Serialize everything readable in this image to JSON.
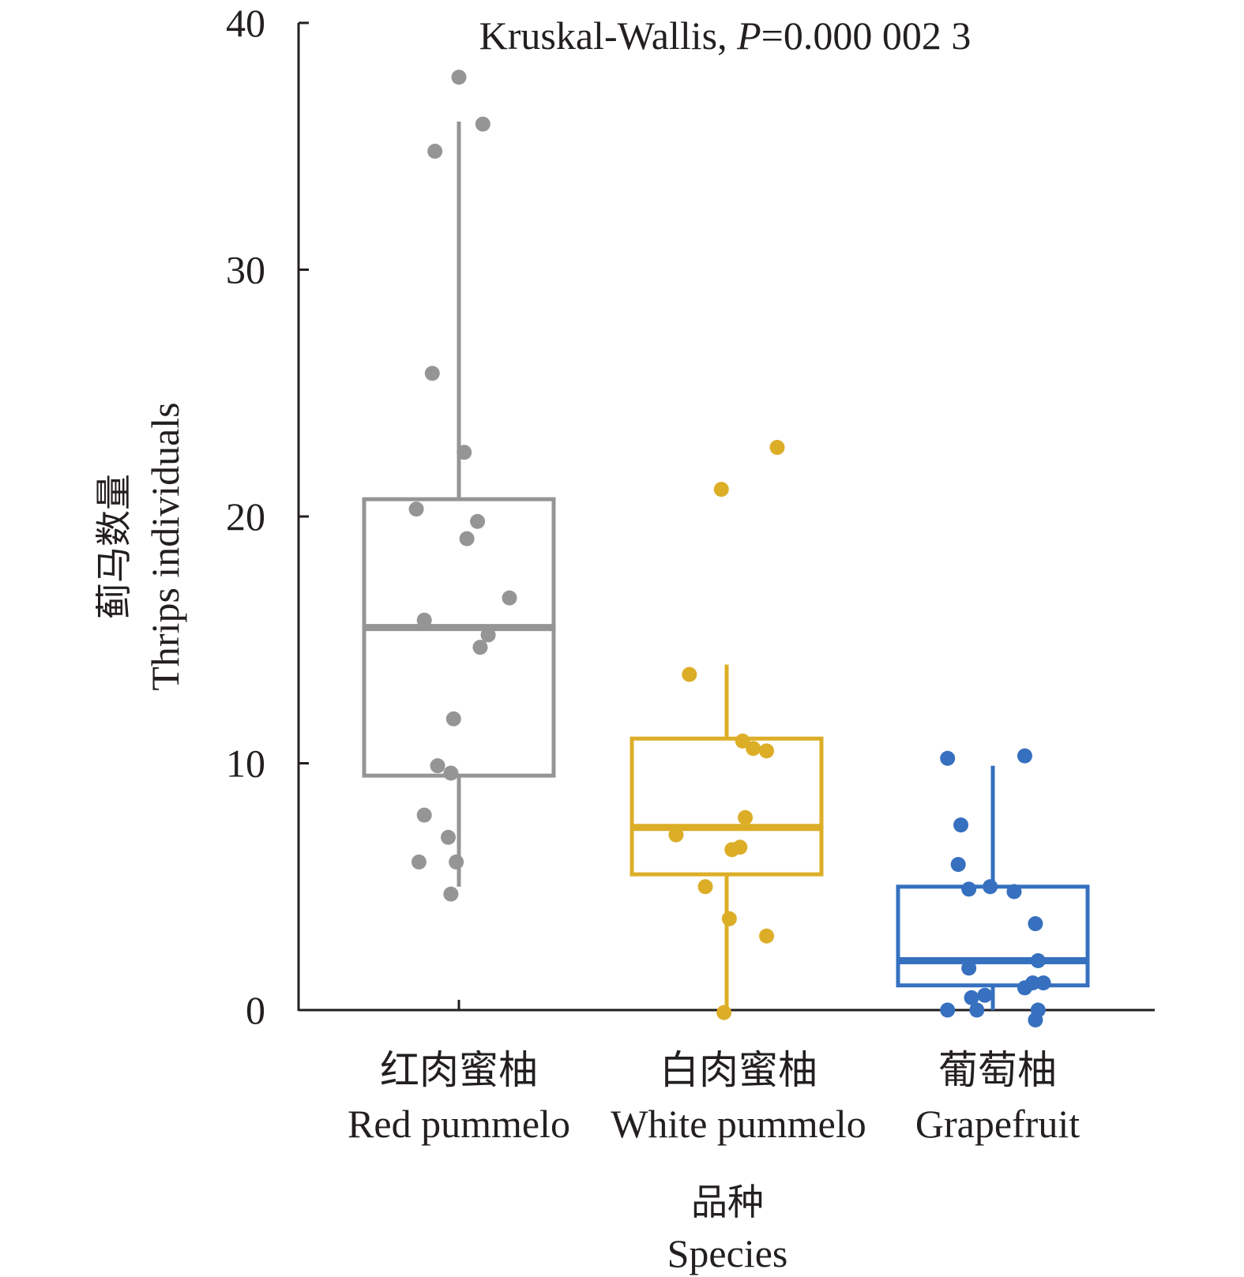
{
  "chart_data": {
    "type": "box",
    "title": "Kruskal-Wallis, ",
    "title_p_label": "P",
    "title_p_value": "=0.000 002 3",
    "ylabel_cn": "蓟马数量",
    "ylabel_en": "Thrips individuals",
    "xlabel_cn": "品种",
    "xlabel_en": "Species",
    "ylim": [
      0,
      40
    ],
    "yticks": [
      0,
      10,
      20,
      30,
      40
    ],
    "ytick_labels": [
      "0",
      "10",
      "20",
      "30",
      "40"
    ],
    "grid": false,
    "categories": [
      {
        "cn": "红肉蜜柚",
        "en": "Red pummelo"
      },
      {
        "cn": "白肉蜜柚",
        "en": "White pummelo"
      },
      {
        "cn": "葡萄柚",
        "en": "Grapefruit"
      }
    ],
    "series": [
      {
        "name": "Red pummelo",
        "color": "#959595",
        "box": {
          "whisker_low": 5.0,
          "q1": 9.5,
          "median": 15.5,
          "q3": 20.7,
          "whisker_high": 36.0
        },
        "points": [
          [
            0.0,
            37.8
          ],
          [
            0.09,
            35.9
          ],
          [
            -0.09,
            34.8
          ],
          [
            -0.1,
            25.8
          ],
          [
            0.02,
            22.6
          ],
          [
            -0.16,
            20.3
          ],
          [
            0.07,
            19.8
          ],
          [
            0.03,
            19.1
          ],
          [
            0.19,
            16.7
          ],
          [
            -0.13,
            15.8
          ],
          [
            0.11,
            15.2
          ],
          [
            0.08,
            14.7
          ],
          [
            -0.02,
            11.8
          ],
          [
            -0.08,
            9.9
          ],
          [
            -0.03,
            9.6
          ],
          [
            -0.13,
            7.9
          ],
          [
            -0.04,
            7.0
          ],
          [
            -0.15,
            6.0
          ],
          [
            -0.01,
            6.0
          ],
          [
            -0.03,
            4.7
          ]
        ]
      },
      {
        "name": "White pummelo",
        "color": "#dcae27",
        "box": {
          "whisker_low": 0.0,
          "q1": 5.5,
          "median": 7.4,
          "q3": 11.0,
          "whisker_high": 14.0
        },
        "points": [
          [
            0.19,
            22.8
          ],
          [
            -0.02,
            21.1
          ],
          [
            -0.14,
            13.6
          ],
          [
            0.06,
            10.9
          ],
          [
            0.1,
            10.6
          ],
          [
            0.15,
            10.5
          ],
          [
            0.07,
            7.8
          ],
          [
            -0.19,
            7.1
          ],
          [
            0.05,
            6.6
          ],
          [
            0.02,
            6.5
          ],
          [
            -0.08,
            5.0
          ],
          [
            0.01,
            3.7
          ],
          [
            0.15,
            3.0
          ],
          [
            -0.01,
            -0.1
          ]
        ]
      },
      {
        "name": "Grapefruit",
        "color": "#3670bf",
        "box": {
          "whisker_low": 0.0,
          "q1": 1.0,
          "median": 2.0,
          "q3": 5.0,
          "whisker_high": 9.9
        },
        "points": [
          [
            -0.17,
            10.2
          ],
          [
            0.12,
            10.3
          ],
          [
            -0.12,
            7.5
          ],
          [
            -0.13,
            5.9
          ],
          [
            -0.09,
            4.9
          ],
          [
            -0.01,
            5.0
          ],
          [
            0.08,
            4.8
          ],
          [
            0.16,
            3.5
          ],
          [
            0.17,
            2.0
          ],
          [
            -0.09,
            1.7
          ],
          [
            0.19,
            1.1
          ],
          [
            0.15,
            1.1
          ],
          [
            0.12,
            0.9
          ],
          [
            -0.08,
            0.5
          ],
          [
            -0.03,
            0.6
          ],
          [
            -0.17,
            0.0
          ],
          [
            -0.06,
            0.0
          ],
          [
            0.17,
            0.0
          ],
          [
            0.16,
            -0.4
          ]
        ]
      }
    ]
  }
}
